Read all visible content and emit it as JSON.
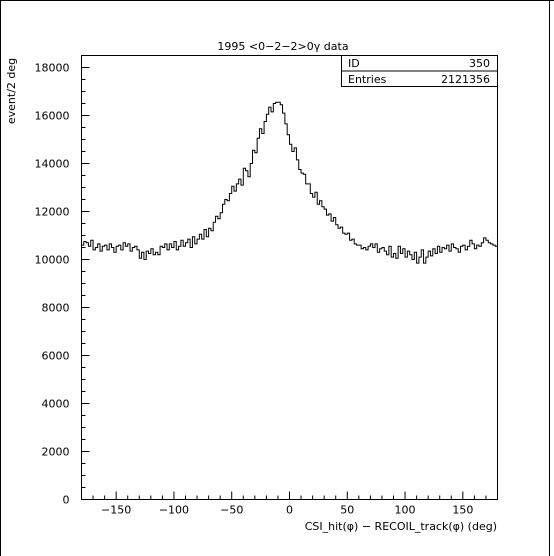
{
  "chart_data": {
    "type": "histogram",
    "title": "1995 <0−2−2>0γ data",
    "xlabel": "CSI_hit(φ) − RECOIL_track(φ) (deg)",
    "ylabel": "event/2 deg",
    "xlim": [
      -180,
      180
    ],
    "ylim": [
      0,
      18500
    ],
    "bin_width": 2,
    "x_ticks": [
      -150,
      -100,
      -50,
      0,
      50,
      100,
      150
    ],
    "y_ticks": [
      0,
      2000,
      4000,
      6000,
      8000,
      10000,
      12000,
      14000,
      16000,
      18000
    ],
    "stats_box": [
      {
        "label": "ID",
        "value": "350"
      },
      {
        "label": "Entries",
        "value": "2121356"
      }
    ],
    "series": [
      {
        "x_start": -180,
        "values": [
          10600,
          10750,
          10700,
          10550,
          10800,
          10400,
          10500,
          10650,
          10350,
          10550,
          10600,
          10400,
          10650,
          10500,
          10300,
          10550,
          10600,
          10400,
          10700,
          10550,
          10650,
          10350,
          10500,
          10550,
          10400,
          10050,
          10300,
          10000,
          10350,
          10250,
          10450,
          10200,
          10300,
          10200,
          10550,
          10500,
          10650,
          10400,
          10650,
          10500,
          10750,
          10400,
          10550,
          10800,
          10550,
          10700,
          10850,
          10500,
          10950,
          10650,
          10850,
          11050,
          10850,
          11250,
          10950,
          11300,
          11200,
          11550,
          11800,
          11700,
          11950,
          12300,
          12500,
          12450,
          12750,
          13050,
          12850,
          13150,
          13350,
          13100,
          13800,
          13700,
          13450,
          14000,
          14550,
          14450,
          15050,
          15450,
          15250,
          15750,
          16050,
          16350,
          16150,
          16500,
          16550,
          16550,
          16450,
          16100,
          15650,
          15200,
          14800,
          14500,
          14650,
          14150,
          13750,
          13600,
          13550,
          13150,
          13150,
          12750,
          12600,
          12800,
          12300,
          12450,
          12200,
          12100,
          11850,
          11900,
          11600,
          11750,
          11450,
          11300,
          11350,
          11100,
          11050,
          11100,
          10800,
          10850,
          10650,
          10600,
          10600,
          10450,
          10500,
          10400,
          10550,
          10650,
          10500,
          10650,
          10300,
          10450,
          10500,
          10350,
          10200,
          10550,
          10100,
          10250,
          10050,
          10550,
          10250,
          10450,
          10100,
          10350,
          10200,
          10000,
          10300,
          9850,
          10100,
          10400,
          9850,
          10100,
          10350,
          10150,
          10450,
          10250,
          10550,
          10300,
          10500,
          10450,
          10600,
          10350,
          10650,
          10500,
          10450,
          10300,
          10550,
          10600,
          10400,
          10550,
          10800,
          10650,
          10450,
          10600,
          10550,
          10700,
          10900,
          10800,
          10700,
          10650,
          10600,
          10550
        ]
      }
    ]
  }
}
